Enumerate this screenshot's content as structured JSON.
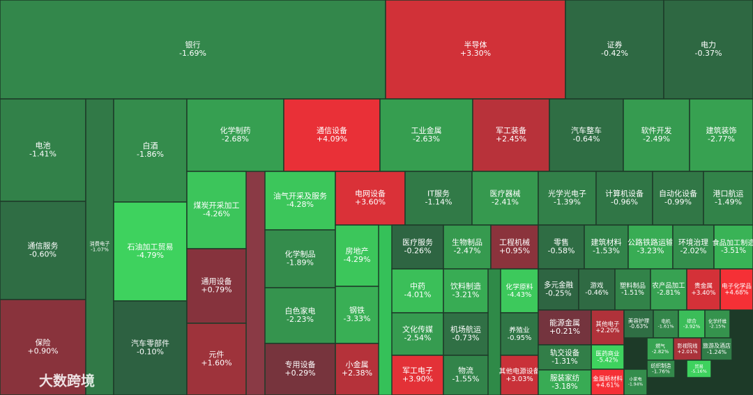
{
  "chart_data": {
    "type": "treemap",
    "categories": [
      "银行",
      "半导体",
      "证券",
      "电力",
      "电池",
      "通信服务",
      "保险",
      "消费电子",
      "白酒",
      "石油加工贸易",
      "汽车零部件",
      "化学制药",
      "通信设备",
      "工业金属",
      "军工装备",
      "汽车整车",
      "软件开发",
      "建筑装饰",
      "煤炭开采加工",
      "通用设备",
      "元件",
      "油气开采及服务",
      "化学制品",
      "白色家电",
      "专用设备",
      "电网设备",
      "房地产",
      "钢铁",
      "小金属",
      "IT服务",
      "医疗器械",
      "光学光电子",
      "计算机设备",
      "自动化设备",
      "港口航运",
      "医疗服务",
      "生物制品",
      "工程机械",
      "零售",
      "建筑材料",
      "公路铁路运输",
      "环境治理",
      "食品加工制造",
      "中药",
      "饮料制造",
      "化学原料",
      "多元金融",
      "游戏",
      "塑料制品",
      "农产品加工",
      "贵金属",
      "电子化学品",
      "文化传媒",
      "机场航运",
      "养殖业",
      "能源金属",
      "其他电子",
      "美容护理",
      "电机",
      "综合",
      "化学纤维",
      "医药商业",
      "军工电子",
      "物流",
      "其他电源设备",
      "轨交设备",
      "服装家纺",
      "金属新材料",
      "燃气",
      "影视院线",
      "旅游及酒店",
      "纺织制造",
      "贸易",
      "小家电"
    ],
    "values": [
      -1.69,
      3.3,
      -0.42,
      -0.37,
      -1.41,
      -0.6,
      0.9,
      -1.07,
      -1.86,
      -4.79,
      -0.1,
      -2.68,
      4.09,
      -2.63,
      2.45,
      -0.64,
      -2.49,
      -2.77,
      -4.26,
      0.79,
      1.6,
      -4.28,
      -1.89,
      -2.23,
      0.29,
      3.6,
      -4.29,
      -3.33,
      2.38,
      -1.14,
      -2.41,
      -1.39,
      -0.96,
      -0.99,
      -1.49,
      -0.26,
      -2.47,
      0.95,
      -0.58,
      -1.53,
      -3.23,
      -2.02,
      -3.51,
      -4.01,
      -3.21,
      -4.43,
      -0.25,
      -0.46,
      -1.51,
      -2.81,
      3.4,
      4.68,
      -2.54,
      -0.73,
      -0.95,
      0.21,
      2.2,
      -0.63,
      -1.61,
      -3.92,
      -2.15,
      -5.42,
      3.9,
      -1.55,
      3.03,
      -1.31,
      -3.18,
      4.61,
      -2.82,
      2.01,
      -1.24,
      -1.76,
      -5.16,
      -1.94
    ],
    "value_labels": [
      "-1.69%",
      "+3.30%",
      "-0.42%",
      "-0.37%",
      "-1.41%",
      "-0.60%",
      "+0.90%",
      "-1.07%",
      "-1.86%",
      "-4.79%",
      "-0.10%",
      "-2.68%",
      "+4.09%",
      "-2.63%",
      "+2.45%",
      "-0.64%",
      "-2.49%",
      "-2.77%",
      "-4.26%",
      "+0.79%",
      "+1.60%",
      "-4.28%",
      "-1.89%",
      "-2.23%",
      "+0.29%",
      "+3.60%",
      "-4.29%",
      "-3.33%",
      "+2.38%",
      "-1.14%",
      "-2.41%",
      "-1.39%",
      "-0.96%",
      "-0.99%",
      "-1.49%",
      "-0.26%",
      "-2.47%",
      "+0.95%",
      "-0.58%",
      "-1.53%",
      "-3.23%",
      "-2.02%",
      "-3.51%",
      "-4.01%",
      "-3.21%",
      "-4.43%",
      "-0.25%",
      "-0.46%",
      "-1.51%",
      "-2.81%",
      "+3.40%",
      "+4.68%",
      "-2.54%",
      "-0.73%",
      "-0.95%",
      "+0.21%",
      "+2.20%",
      "-0.63%",
      "-1.61%",
      "-3.92%",
      "-2.15%",
      "-5.42%",
      "+3.90%",
      "-1.55%",
      "+3.03%",
      "-1.31%",
      "-3.18%",
      "+4.61%",
      "-2.82%",
      "+2.01%",
      "-1.24%",
      "-1.76%",
      "-5.16%",
      "-1.94%"
    ]
  },
  "watermark": "大数跨境"
}
